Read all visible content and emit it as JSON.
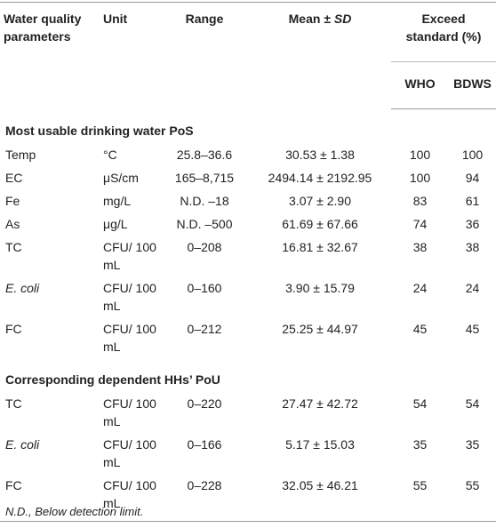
{
  "table": {
    "header": {
      "parameter": "Water quality parameters",
      "unit": "Unit",
      "range": "Range",
      "mean": "Mean ±",
      "sd": "SD",
      "exceed": "Exceed standard (%)",
      "who": "WHO",
      "bdws": "BDWS"
    },
    "sections": [
      {
        "title": "Most usable drinking water PoS",
        "rows": [
          {
            "cells": [
              "Temp",
              "°C",
              "25.8–36.6",
              "30.53 ± 1.38",
              "100",
              "100"
            ],
            "italic": false
          },
          {
            "cells": [
              "EC",
              "μS/cm",
              "165–8,715",
              "2494.14 ± 2192.95",
              "100",
              "94"
            ],
            "italic": false
          },
          {
            "cells": [
              "Fe",
              "mg/L",
              "N.D. –18",
              "3.07 ± 2.90",
              "83",
              "61"
            ],
            "italic": false
          },
          {
            "cells": [
              "As",
              "μg/L",
              "N.D. –500",
              "61.69 ± 67.66",
              "74",
              "36"
            ],
            "italic": false
          },
          {
            "cells": [
              "TC",
              "CFU/ 100 mL",
              "0–208",
              "16.81 ± 32.67",
              "38",
              "38"
            ],
            "italic": false
          },
          {
            "cells": [
              "E. coli",
              "CFU/ 100 mL",
              "0–160",
              "3.90 ± 15.79",
              "24",
              "24"
            ],
            "italic": true
          },
          {
            "cells": [
              "FC",
              "CFU/ 100 mL",
              "0–212",
              "25.25 ± 44.97",
              "45",
              "45"
            ],
            "italic": false
          }
        ]
      },
      {
        "title": "Corresponding dependent HHs’ PoU",
        "rows": [
          {
            "cells": [
              "TC",
              "CFU/ 100 mL",
              "0–220",
              "27.47 ± 42.72",
              "54",
              "54"
            ],
            "italic": false
          },
          {
            "cells": [
              "E. coli",
              "CFU/ 100 mL",
              "0–166",
              "5.17 ± 15.03",
              "35",
              "35"
            ],
            "italic": true
          },
          {
            "cells": [
              "FC",
              "CFU/ 100 mL",
              "0–228",
              "32.05 ± 46.21",
              "55",
              "55"
            ],
            "italic": false
          }
        ]
      }
    ]
  },
  "footnote": "N.D., Below detection limit."
}
